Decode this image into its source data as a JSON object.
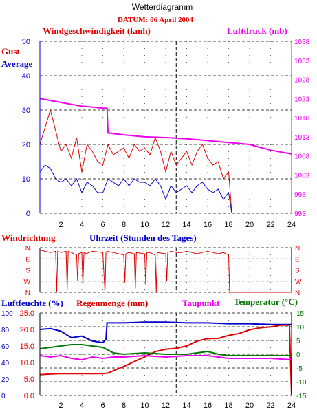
{
  "header": {
    "title": "Wetterdiagramm",
    "date": "DATUM: 06 April 2004"
  },
  "colors": {
    "red": "#e00000",
    "blue": "#0000cc",
    "magenta": "#ee00ee",
    "green": "#007700",
    "grid": "#000000"
  },
  "chart_data": [
    {
      "type": "line",
      "title": "Windgeschwindigkeit (kmh)",
      "right_title": "Luftdruck (mb)",
      "ylabel": "Gust",
      "ylabel2": "Average",
      "xlim": [
        0,
        24
      ],
      "x_ticks": [
        "2",
        "4",
        "6",
        "8",
        "10",
        "12",
        "14",
        "16",
        "18",
        "20",
        "22",
        "24"
      ],
      "ylim": [
        0,
        50
      ],
      "y_ticks": [
        "0",
        "10",
        "20",
        "30",
        "40",
        "50"
      ],
      "ylim_right": [
        993,
        1038
      ],
      "y_ticks_right": [
        "993",
        "998",
        "1003",
        "1008",
        "1013",
        "1018",
        "1023",
        "1028",
        "1033",
        "1038"
      ],
      "grid": true,
      "marker_x": 13,
      "series": [
        {
          "name": "Gust",
          "color": "#e00000",
          "x": [
            0,
            0.5,
            1,
            1.5,
            2,
            2.5,
            3,
            3.5,
            4,
            4.5,
            5,
            5.5,
            6,
            6.5,
            7,
            7.5,
            8,
            8.5,
            9,
            9.5,
            10,
            10.5,
            11,
            11.5,
            12,
            12.5,
            13,
            13.5,
            14,
            14.5,
            15,
            15.5,
            16,
            16.5,
            17,
            17.5,
            18,
            18.3
          ],
          "y": [
            20,
            25,
            30,
            24,
            18,
            20,
            16,
            22,
            12,
            20,
            18,
            15,
            14,
            20,
            17,
            18,
            19,
            16,
            20,
            18,
            19,
            17,
            22,
            18,
            12,
            18,
            14,
            16,
            18,
            14,
            18,
            20,
            16,
            14,
            15,
            10,
            12,
            0
          ]
        },
        {
          "name": "Average",
          "color": "#0000cc",
          "x": [
            0,
            0.5,
            1,
            1.5,
            2,
            2.5,
            3,
            3.5,
            4,
            4.5,
            5,
            5.5,
            6,
            6.5,
            7,
            7.5,
            8,
            8.5,
            9,
            9.5,
            10,
            10.5,
            11,
            11.5,
            12,
            12.5,
            13,
            13.5,
            14,
            14.5,
            15,
            15.5,
            16,
            16.5,
            17,
            17.5,
            18,
            18.3
          ],
          "y": [
            12,
            14,
            13,
            10,
            9,
            10,
            8,
            10,
            6,
            9,
            8,
            6,
            6,
            10,
            9,
            8,
            10,
            8,
            10,
            9,
            9,
            8,
            10,
            8,
            4,
            8,
            6,
            7,
            8,
            6,
            8,
            9,
            7,
            6,
            7,
            4,
            6,
            0
          ]
        },
        {
          "name": "Luftdruck",
          "color": "#ee00ee",
          "axis": "right",
          "x": [
            0,
            1,
            2,
            3,
            4,
            5,
            6,
            6.4,
            6.5,
            8,
            10,
            12,
            14,
            16,
            18,
            20,
            22,
            24
          ],
          "y": [
            1023,
            1022.5,
            1022,
            1021.5,
            1021,
            1020.8,
            1020.5,
            1020.5,
            1014,
            1013.5,
            1013,
            1012.8,
            1012.5,
            1012,
            1011.5,
            1011,
            1009.5,
            1008.5
          ]
        }
      ]
    },
    {
      "type": "line",
      "title": "Windrichtung",
      "xlabel": "Uhrzeit (Stunden des Tages)",
      "xlim": [
        0,
        24
      ],
      "y_categories": [
        "N",
        "W",
        "S",
        "E",
        "N"
      ],
      "ylim": [
        0,
        360
      ],
      "grid": true,
      "marker_x": 13,
      "series": [
        {
          "name": "Windrichtung",
          "color": "#e00000",
          "x": [
            0,
            1,
            1.5,
            1.6,
            1.7,
            2,
            2.5,
            2.6,
            2.7,
            3,
            3.5,
            3.6,
            3.7,
            4,
            4.1,
            4.2,
            4.4,
            5,
            6,
            6.2,
            6.3,
            6.4,
            7,
            8,
            8.1,
            8.2,
            8.5,
            9,
            9.1,
            9.2,
            10,
            10.1,
            10.2,
            10.5,
            11,
            11.1,
            11.2,
            12,
            12.1,
            12.2,
            12.5,
            13,
            13.5,
            14,
            14.5,
            15,
            15.5,
            16,
            16.5,
            17,
            17.5,
            18,
            18.1,
            18.2,
            24
          ],
          "y": [
            340,
            320,
            330,
            0,
            330,
            320,
            330,
            20,
            330,
            320,
            300,
            90,
            310,
            320,
            60,
            320,
            310,
            330,
            320,
            0,
            320,
            330,
            320,
            300,
            80,
            310,
            320,
            310,
            30,
            320,
            310,
            60,
            320,
            320,
            300,
            0,
            320,
            310,
            90,
            320,
            330,
            320,
            320,
            330,
            320,
            310,
            320,
            330,
            320,
            310,
            320,
            300,
            0,
            0,
            0
          ]
        }
      ]
    },
    {
      "type": "line",
      "title": "Luftfeuchte (%)",
      "title2": "Regenmenge (mm)",
      "title3": "Taupunkt",
      "title4": "Temperatur (°C)",
      "xlim": [
        0,
        24
      ],
      "x_ticks": [
        "2",
        "4",
        "6",
        "8",
        "10",
        "12",
        "14",
        "16",
        "18",
        "20",
        "22",
        "24"
      ],
      "ylim_humidity": [
        0,
        100
      ],
      "y_ticks_humidity": [
        "0",
        "20",
        "40",
        "60",
        "80",
        "100"
      ],
      "ylim_rain": [
        0,
        25
      ],
      "y_ticks_rain": [
        "0.0",
        "5.0",
        "10.0",
        "15.0",
        "20.0",
        "25.0"
      ],
      "ylim_temp": [
        -15,
        15
      ],
      "y_ticks_temp": [
        "-15",
        "-10",
        "-5",
        "0",
        "5",
        "10",
        "15"
      ],
      "grid": true,
      "marker_x": 13,
      "series": [
        {
          "name": "Luftfeuchte",
          "color": "#0000cc",
          "axis": "humidity",
          "x": [
            0,
            1,
            2,
            3,
            4,
            5,
            6,
            6.3,
            6.4,
            8,
            10,
            12,
            14,
            16,
            18,
            20,
            22,
            24
          ],
          "y": [
            80,
            81,
            78,
            70,
            72,
            66,
            64,
            68,
            88,
            88,
            89,
            89,
            88,
            88,
            87,
            87,
            86,
            86
          ]
        },
        {
          "name": "Regenmenge",
          "color": "#e00000",
          "axis": "rain",
          "x": [
            0,
            1,
            2,
            3,
            4,
            5,
            6,
            6.5,
            7,
            8,
            9,
            10,
            11,
            12,
            13,
            14,
            15,
            16,
            17,
            18,
            19,
            20,
            21,
            22,
            23,
            23.8,
            24
          ],
          "y": [
            6.3,
            6.5,
            6.6,
            6.6,
            6.6,
            6.6,
            6.6,
            6.8,
            7.5,
            8.8,
            10.3,
            11.7,
            13.3,
            14.0,
            14.3,
            15.0,
            16.5,
            17.2,
            17.3,
            18.2,
            18.8,
            19.9,
            20.5,
            20.8,
            21.3,
            21.3,
            0
          ]
        },
        {
          "name": "Taupunkt",
          "color": "#ee00ee",
          "axis": "temp",
          "x": [
            0,
            1,
            2,
            3,
            4,
            5,
            6,
            7,
            8,
            10,
            12,
            14,
            16,
            18,
            20,
            22,
            24
          ],
          "y": [
            -0.5,
            -1,
            -0.5,
            -1.5,
            -2,
            -1,
            -1.5,
            -1,
            -1,
            -0.5,
            -1,
            -0.5,
            -0.5,
            -1.5,
            -1.5,
            -1.5,
            -2
          ]
        },
        {
          "name": "Temperatur",
          "color": "#007700",
          "axis": "temp",
          "x": [
            0,
            1,
            2,
            3,
            4,
            5,
            6,
            6.5,
            7,
            8,
            10,
            12,
            14,
            16,
            17,
            18,
            20,
            22,
            24
          ],
          "y": [
            2,
            2.5,
            3,
            3.5,
            3.5,
            3,
            2.5,
            1.5,
            0.5,
            0,
            0.5,
            0,
            0,
            1,
            0,
            -0.5,
            -0.5,
            -0.5,
            -0.5
          ]
        }
      ]
    }
  ]
}
